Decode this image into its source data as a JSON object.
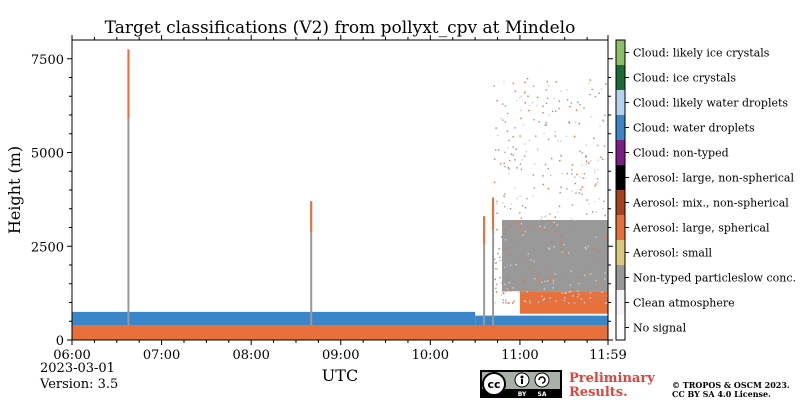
{
  "chart_data": {
    "type": "heatmap",
    "title": "Target classifications (V2) from pollyxt_cpv at Mindelo",
    "xlabel": "UTC",
    "ylabel": "Height (m)",
    "x_range": [
      "06:00",
      "11:59"
    ],
    "y_range": [
      0,
      8000
    ],
    "x_ticks": [
      "06:00",
      "07:00",
      "08:00",
      "09:00",
      "10:00",
      "11:00",
      "11:59"
    ],
    "y_ticks": [
      "0",
      "2500",
      "5000",
      "7500"
    ],
    "y_tick_values": [
      0,
      2500,
      5000,
      7500
    ],
    "x_tick_hours": [
      6.0,
      7.0,
      8.0,
      9.0,
      10.0,
      11.0,
      11.983
    ],
    "classes": [
      {
        "label": "No signal",
        "color": "#ffffff"
      },
      {
        "label": "Clean atmosphere",
        "color": "#f5f5f5"
      },
      {
        "label": "Non-typed particleslow conc.",
        "color": "#999999"
      },
      {
        "label": "Aerosol: small",
        "color": "#dcc97a"
      },
      {
        "label": "Aerosol: large, spherical",
        "color": "#e8703a"
      },
      {
        "label": "Aerosol: mix., non-spherical",
        "color": "#a9401e"
      },
      {
        "label": "Aerosol: large, non-spherical",
        "color": "#000000"
      },
      {
        "label": "Cloud: non-typed",
        "color": "#7b1f82"
      },
      {
        "label": "Cloud: water droplets",
        "color": "#3a86c8"
      },
      {
        "label": "Cloud: likely water droplets",
        "color": "#b3d4f0"
      },
      {
        "label": "Cloud: ice crystals",
        "color": "#1f6b35"
      },
      {
        "label": "Cloud: likely ice crystals",
        "color": "#8cbf6a"
      }
    ],
    "layers": [
      {
        "class": "Aerosol: large, spherical",
        "x_start": 6.0,
        "x_end": 11.983,
        "y_top": 400
      },
      {
        "class": "Cloud: water droplets",
        "x_start": 6.0,
        "x_end": 10.5,
        "y_bottom": 400,
        "y_top": 750
      },
      {
        "class": "Cloud: water droplets",
        "x_start": 10.5,
        "x_end": 11.983,
        "y_bottom": 400,
        "y_top": 650
      },
      {
        "class": "Non-typed particleslow conc.",
        "x_start": 10.8,
        "x_end": 11.983,
        "y_bottom": 1300,
        "y_top": 3200
      },
      {
        "class": "Aerosol: large, spherical",
        "x_start": 11.0,
        "x_end": 11.983,
        "y_bottom": 700,
        "y_top": 1300
      }
    ],
    "spikes": [
      {
        "x": 6.63,
        "y_top": 7750
      },
      {
        "x": 8.67,
        "y_top": 3700
      },
      {
        "x": 10.6,
        "y_top": 3300
      },
      {
        "x": 10.7,
        "y_top": 3800
      }
    ]
  },
  "footer": {
    "date": "2023-03-01",
    "version": "Version: 3.5",
    "preliminary_line1": "Preliminary",
    "preliminary_line2": "Results.",
    "copyright_line1": "© TROPOS & OSCM 2023.",
    "copyright_line2": "CC BY SA 4.0 License.",
    "cc_badge": "cc",
    "cc_by": "BY",
    "cc_sa": "SA"
  },
  "colors": {
    "preliminary": "#e8403a",
    "cc_badge_bg": "#a8b0a8",
    "cc_badge_dark": "#000000"
  }
}
